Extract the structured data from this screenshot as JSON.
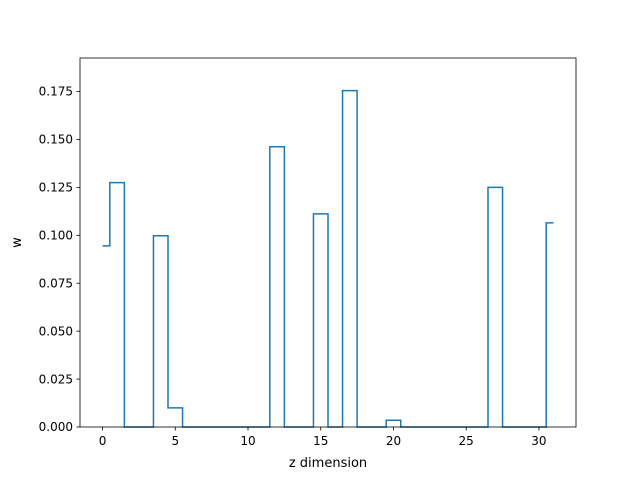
{
  "chart_data": {
    "type": "line",
    "drawstyle": "steps-mid",
    "title": "",
    "xlabel": "z dimension",
    "ylabel": "w",
    "xlim": [
      -1.55,
      32.55
    ],
    "ylim": [
      0,
      0.1925
    ],
    "xticks": [
      0,
      5,
      10,
      15,
      20,
      25,
      30
    ],
    "xtick_labels": [
      "0",
      "5",
      "10",
      "15",
      "20",
      "25",
      "30"
    ],
    "yticks": [
      0.0,
      0.025,
      0.05,
      0.075,
      0.1,
      0.125,
      0.15,
      0.175
    ],
    "ytick_labels": [
      "0.000",
      "0.025",
      "0.050",
      "0.075",
      "0.100",
      "0.125",
      "0.150",
      "0.175"
    ],
    "grid": false,
    "legend": "none",
    "color": "#1f77b4",
    "x": [
      0,
      1,
      2,
      3,
      4,
      5,
      6,
      7,
      8,
      9,
      10,
      11,
      12,
      13,
      14,
      15,
      16,
      17,
      18,
      19,
      20,
      21,
      22,
      23,
      24,
      25,
      26,
      27,
      28,
      29,
      30,
      31
    ],
    "values": [
      0.0945,
      0.1275,
      0,
      0,
      0.0998,
      0.01,
      0,
      0,
      0,
      0,
      0,
      0,
      0.1462,
      0,
      0,
      0.1112,
      0,
      0.1755,
      0,
      0,
      0.0035,
      0,
      0,
      0,
      0,
      0,
      0,
      0.125,
      0,
      0,
      0,
      0.1065
    ]
  }
}
